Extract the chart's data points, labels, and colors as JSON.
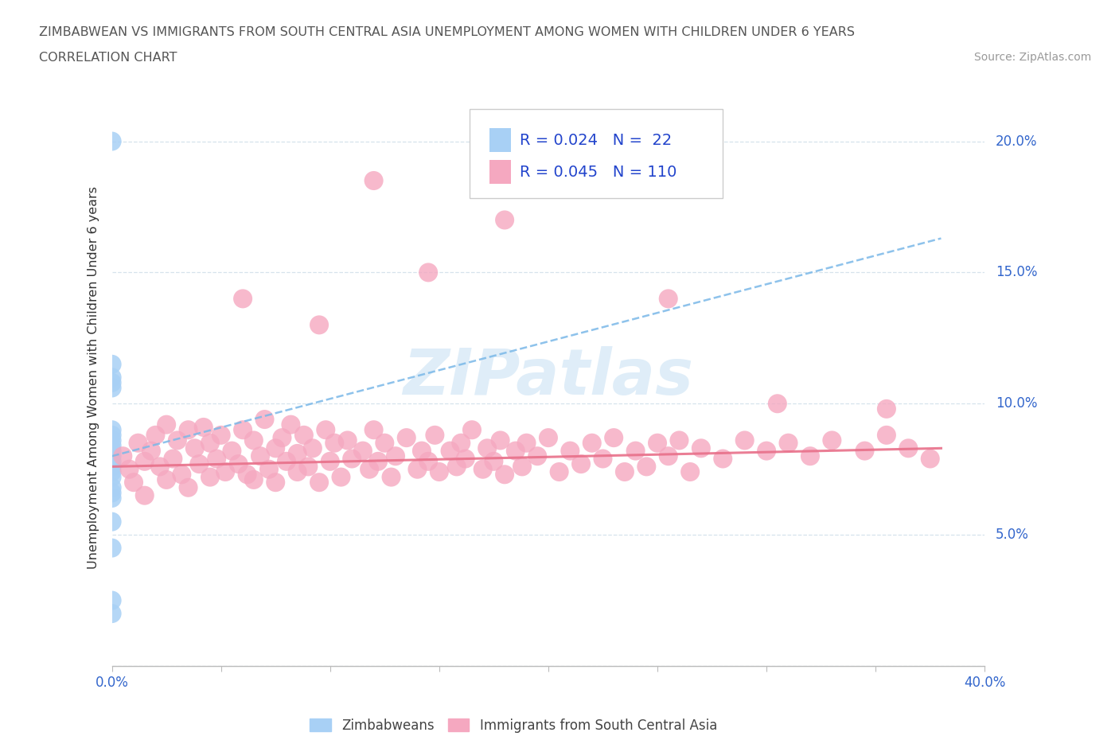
{
  "title_line1": "ZIMBABWEAN VS IMMIGRANTS FROM SOUTH CENTRAL ASIA UNEMPLOYMENT AMONG WOMEN WITH CHILDREN UNDER 6 YEARS",
  "title_line2": "CORRELATION CHART",
  "source": "Source: ZipAtlas.com",
  "ylabel": "Unemployment Among Women with Children Under 6 years",
  "xlim": [
    0.0,
    0.4
  ],
  "ylim": [
    0.0,
    0.22
  ],
  "xticks": [
    0.0,
    0.05,
    0.1,
    0.15,
    0.2,
    0.25,
    0.3,
    0.35,
    0.4
  ],
  "xticklabels": [
    "0.0%",
    "",
    "",
    "",
    "",
    "",
    "",
    "",
    "40.0%"
  ],
  "yticks": [
    0.0,
    0.05,
    0.1,
    0.15,
    0.2
  ],
  "yticklabels": [
    "",
    "5.0%",
    "10.0%",
    "15.0%",
    "20.0%"
  ],
  "zimbabwe_color": "#a8d0f5",
  "immigrant_color": "#f5a8c0",
  "zimbabwe_line_color": "#7ab8e8",
  "immigrant_line_color": "#e8708a",
  "legend_text_color": "#2244cc",
  "watermark": "ZIPatlas",
  "zim_y": [
    0.2,
    0.115,
    0.11,
    0.108,
    0.106,
    0.09,
    0.088,
    0.086,
    0.084,
    0.082,
    0.08,
    0.078,
    0.076,
    0.074,
    0.072,
    0.068,
    0.066,
    0.064,
    0.055,
    0.045,
    0.025,
    0.02
  ],
  "imm_x": [
    0.005,
    0.008,
    0.01,
    0.012,
    0.015,
    0.015,
    0.018,
    0.02,
    0.022,
    0.025,
    0.025,
    0.028,
    0.03,
    0.032,
    0.035,
    0.035,
    0.038,
    0.04,
    0.042,
    0.045,
    0.045,
    0.048,
    0.05,
    0.052,
    0.055,
    0.058,
    0.06,
    0.062,
    0.065,
    0.065,
    0.068,
    0.07,
    0.072,
    0.075,
    0.075,
    0.078,
    0.08,
    0.082,
    0.085,
    0.085,
    0.088,
    0.09,
    0.092,
    0.095,
    0.098,
    0.1,
    0.102,
    0.105,
    0.108,
    0.11,
    0.115,
    0.118,
    0.12,
    0.122,
    0.125,
    0.128,
    0.13,
    0.135,
    0.14,
    0.142,
    0.145,
    0.148,
    0.15,
    0.155,
    0.158,
    0.16,
    0.162,
    0.165,
    0.17,
    0.172,
    0.175,
    0.178,
    0.18,
    0.185,
    0.188,
    0.19,
    0.195,
    0.2,
    0.205,
    0.21,
    0.215,
    0.22,
    0.225,
    0.23,
    0.235,
    0.24,
    0.245,
    0.25,
    0.255,
    0.26,
    0.265,
    0.27,
    0.28,
    0.29,
    0.3,
    0.31,
    0.32,
    0.33,
    0.345,
    0.355,
    0.365,
    0.375,
    0.12,
    0.18,
    0.255,
    0.305,
    0.355,
    0.06,
    0.095,
    0.145
  ],
  "imm_y": [
    0.08,
    0.075,
    0.07,
    0.085,
    0.078,
    0.065,
    0.082,
    0.088,
    0.076,
    0.092,
    0.071,
    0.079,
    0.086,
    0.073,
    0.09,
    0.068,
    0.083,
    0.077,
    0.091,
    0.072,
    0.085,
    0.079,
    0.088,
    0.074,
    0.082,
    0.077,
    0.09,
    0.073,
    0.086,
    0.071,
    0.08,
    0.094,
    0.075,
    0.083,
    0.07,
    0.087,
    0.078,
    0.092,
    0.074,
    0.081,
    0.088,
    0.076,
    0.083,
    0.07,
    0.09,
    0.078,
    0.085,
    0.072,
    0.086,
    0.079,
    0.082,
    0.075,
    0.09,
    0.078,
    0.085,
    0.072,
    0.08,
    0.087,
    0.075,
    0.082,
    0.078,
    0.088,
    0.074,
    0.082,
    0.076,
    0.085,
    0.079,
    0.09,
    0.075,
    0.083,
    0.078,
    0.086,
    0.073,
    0.082,
    0.076,
    0.085,
    0.08,
    0.087,
    0.074,
    0.082,
    0.077,
    0.085,
    0.079,
    0.087,
    0.074,
    0.082,
    0.076,
    0.085,
    0.08,
    0.086,
    0.074,
    0.083,
    0.079,
    0.086,
    0.082,
    0.085,
    0.08,
    0.086,
    0.082,
    0.088,
    0.083,
    0.079,
    0.185,
    0.17,
    0.14,
    0.1,
    0.098,
    0.14,
    0.13,
    0.15
  ],
  "zim_line_x": [
    0.0,
    0.38
  ],
  "zim_line_y": [
    0.08,
    0.163
  ],
  "imm_line_x": [
    0.0,
    0.38
  ],
  "imm_line_y": [
    0.076,
    0.083
  ]
}
